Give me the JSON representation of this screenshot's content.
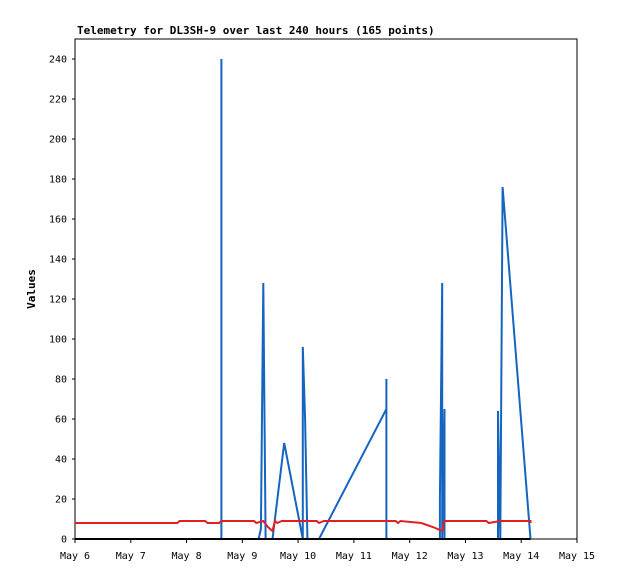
{
  "chart_data": {
    "type": "line",
    "title": "Telemetry for DL3SH-9 over last 240 hours (165 points)",
    "xlabel": "",
    "ylabel": "Values",
    "ylim": [
      0,
      250
    ],
    "yticks": [
      0,
      20,
      40,
      60,
      80,
      100,
      120,
      140,
      160,
      180,
      200,
      220,
      240
    ],
    "xlim": [
      "2024-05-06T00:00",
      "2024-05-15T00:00"
    ],
    "xticks": [
      "2024-05-06",
      "2024-05-07",
      "2024-05-08",
      "2024-05-09",
      "2024-05-10",
      "2024-05-11",
      "2024-05-12",
      "2024-05-13",
      "2024-05-14",
      "2024-05-15"
    ],
    "xtick_labels": [
      "May 6",
      "May 7",
      "May 8",
      "May 9",
      "May 10",
      "May 11",
      "May 12",
      "May 13",
      "May 14",
      "May 15"
    ],
    "grid": false,
    "colors": {
      "series_1": "#1565c0",
      "series_2": "#e02020",
      "series_3": "#000000",
      "frame": "#000000"
    },
    "series": [
      {
        "color": "#1565c0",
        "points": [
          {
            "x": "2024-05-08T15:00",
            "y": 0
          },
          {
            "x": "2024-05-08T15:00",
            "y": 240
          },
          {
            "x": "2024-05-08T15:00",
            "y": 0
          },
          {
            "x": "2024-05-09T05:00",
            "y": 0
          },
          {
            "x": "2024-05-09T07:00",
            "y": 0
          },
          {
            "x": "2024-05-09T08:00",
            "y": 5
          },
          {
            "x": "2024-05-09T09:00",
            "y": 128
          },
          {
            "x": "2024-05-09T10:00",
            "y": 0
          },
          {
            "x": "2024-05-09T13:00",
            "y": 0
          },
          {
            "x": "2024-05-09T18:00",
            "y": 48
          },
          {
            "x": "2024-05-10T02:00",
            "y": 0
          },
          {
            "x": "2024-05-10T02:00",
            "y": 96
          },
          {
            "x": "2024-05-10T03:00",
            "y": 60
          },
          {
            "x": "2024-05-10T04:00",
            "y": 0
          },
          {
            "x": "2024-05-10T09:00",
            "y": 0
          },
          {
            "x": "2024-05-11T14:00",
            "y": 65
          },
          {
            "x": "2024-05-11T14:00",
            "y": 80
          },
          {
            "x": "2024-05-11T14:00",
            "y": 0
          },
          {
            "x": "2024-05-12T13:00",
            "y": 0
          },
          {
            "x": "2024-05-12T13:00",
            "y": 20
          },
          {
            "x": "2024-05-12T14:00",
            "y": 128
          },
          {
            "x": "2024-05-12T14:00",
            "y": 0
          },
          {
            "x": "2024-05-12T15:00",
            "y": 65
          },
          {
            "x": "2024-05-12T15:00",
            "y": 0
          },
          {
            "x": "2024-05-13T14:00",
            "y": 0
          },
          {
            "x": "2024-05-13T14:00",
            "y": 64
          },
          {
            "x": "2024-05-13T15:00",
            "y": 0
          },
          {
            "x": "2024-05-13T16:00",
            "y": 176
          },
          {
            "x": "2024-05-14T04:00",
            "y": 0
          }
        ]
      },
      {
        "color": "#e02020",
        "points": [
          {
            "x": "2024-05-06T00:00",
            "y": 8
          },
          {
            "x": "2024-05-07T20:00",
            "y": 8
          },
          {
            "x": "2024-05-07T21:00",
            "y": 9
          },
          {
            "x": "2024-05-08T08:00",
            "y": 9
          },
          {
            "x": "2024-05-08T09:00",
            "y": 8
          },
          {
            "x": "2024-05-08T14:00",
            "y": 8
          },
          {
            "x": "2024-05-08T15:00",
            "y": 9
          },
          {
            "x": "2024-05-09T05:00",
            "y": 9
          },
          {
            "x": "2024-05-09T06:00",
            "y": 8
          },
          {
            "x": "2024-05-09T09:00",
            "y": 9
          },
          {
            "x": "2024-05-09T11:00",
            "y": 6
          },
          {
            "x": "2024-05-09T13:00",
            "y": 4
          },
          {
            "x": "2024-05-09T14:00",
            "y": 9
          },
          {
            "x": "2024-05-09T15:00",
            "y": 8
          },
          {
            "x": "2024-05-09T17:00",
            "y": 9
          },
          {
            "x": "2024-05-10T08:00",
            "y": 9
          },
          {
            "x": "2024-05-10T09:00",
            "y": 8
          },
          {
            "x": "2024-05-10T11:00",
            "y": 9
          },
          {
            "x": "2024-05-11T18:00",
            "y": 9
          },
          {
            "x": "2024-05-11T19:00",
            "y": 8
          },
          {
            "x": "2024-05-11T20:00",
            "y": 9
          },
          {
            "x": "2024-05-12T05:00",
            "y": 8
          },
          {
            "x": "2024-05-12T10:00",
            "y": 6
          },
          {
            "x": "2024-05-12T14:00",
            "y": 4
          },
          {
            "x": "2024-05-12T15:00",
            "y": 9
          },
          {
            "x": "2024-05-13T09:00",
            "y": 9
          },
          {
            "x": "2024-05-13T10:00",
            "y": 8
          },
          {
            "x": "2024-05-13T15:00",
            "y": 9
          },
          {
            "x": "2024-05-14T04:00",
            "y": 9
          },
          {
            "x": "2024-05-14T04:00",
            "y": 8
          }
        ]
      },
      {
        "color": "#000000",
        "points": [
          {
            "x": "2024-05-06T00:00",
            "y": 0
          },
          {
            "x": "2024-05-14T04:00",
            "y": 0
          }
        ]
      }
    ]
  }
}
